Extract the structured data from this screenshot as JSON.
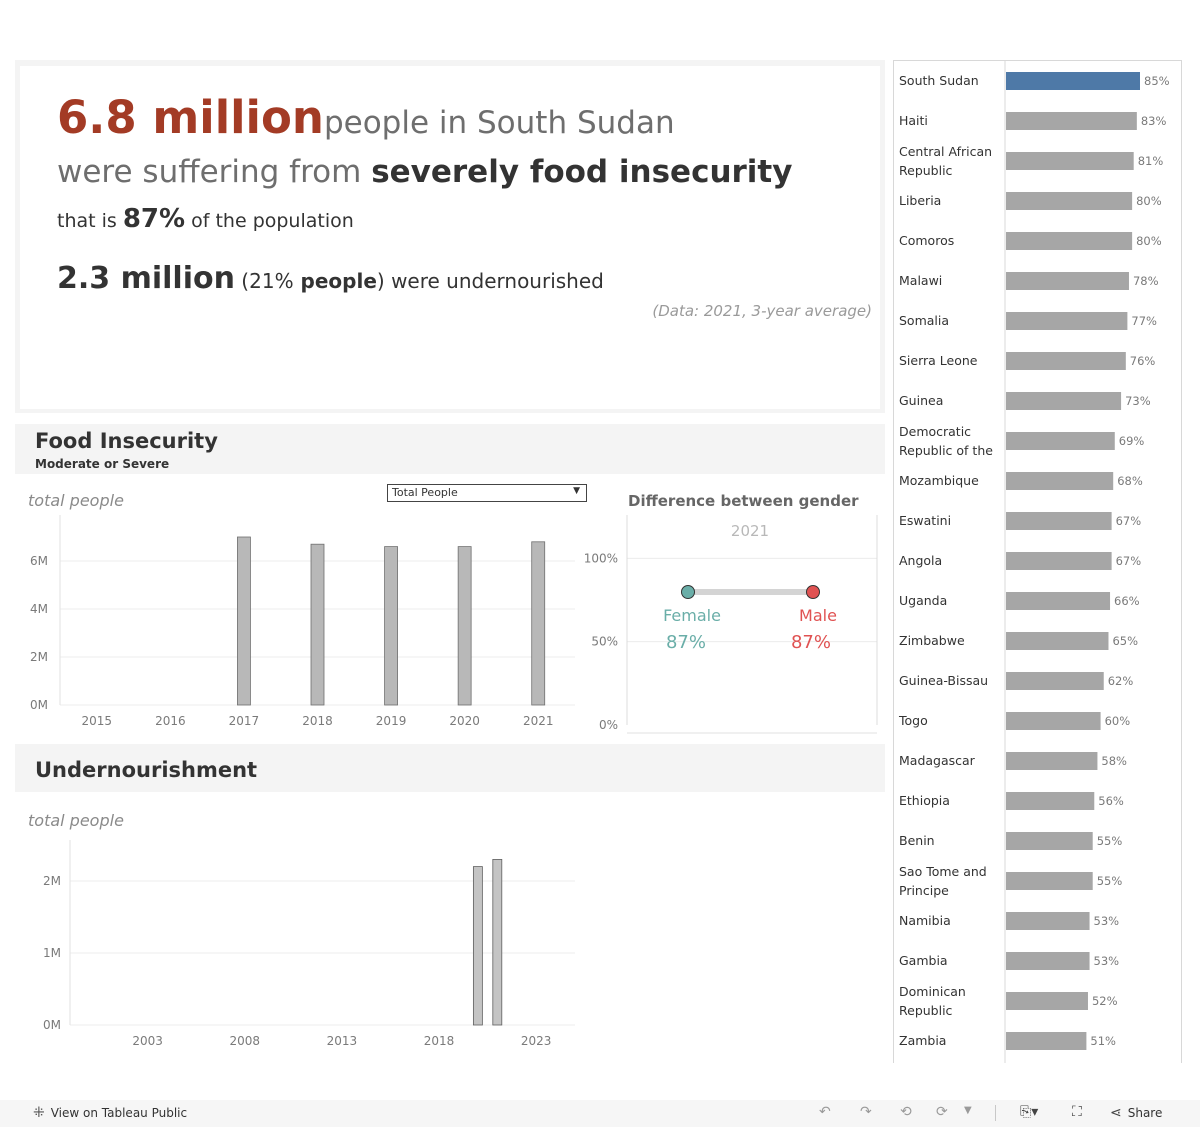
{
  "headline": {
    "amount": "6.8 million",
    "text_people_in": "people in ",
    "country": "South Sudan",
    "text_were_suffering": "were suffering from ",
    "severity": "severely food insecurity",
    "text_that_is": "that is ",
    "percent": "87%",
    "text_of_population": " of the population",
    "under_amount": "2.3 million",
    "under_paren_open": " (",
    "under_pct": "21%",
    "under_people": " people",
    "under_paren_rest": ") were undernourished",
    "note": "(Data: 2021, 3-year average)"
  },
  "food_insecurity": {
    "title": "Food Insecurity",
    "subtitle": "Moderate or Severe",
    "axis_caption": "total people",
    "dropdown_value": "Total People"
  },
  "gender": {
    "title": "Difference between gender",
    "year": "2021",
    "female_label": "Female",
    "male_label": "Male",
    "female_value_label": "87%",
    "male_value_label": "87%",
    "female_color": "#6aaea8",
    "male_color": "#e05252"
  },
  "undernourishment": {
    "title": "Undernourishment",
    "axis_caption": "total people"
  },
  "footer": {
    "view_label": "View on Tableau Public",
    "share_label": "Share"
  },
  "chart_data": [
    {
      "type": "bar",
      "name_ref": "food-insecurity-chart",
      "categories": [
        "2015",
        "2016",
        "2017",
        "2018",
        "2019",
        "2020",
        "2021"
      ],
      "values": [
        null,
        null,
        7.0,
        6.7,
        6.6,
        6.6,
        6.8
      ],
      "unit": "M",
      "ylim": [
        0,
        7.5
      ],
      "yticks": [
        "0M",
        "2M",
        "4M",
        "6M"
      ],
      "ytick_values": [
        0,
        2,
        4,
        6
      ],
      "grid": true,
      "bar_color": "#b8b8b8"
    },
    {
      "type": "scatter",
      "name_ref": "gender-dumbbell-chart",
      "x": [
        "Female",
        "Male"
      ],
      "values": [
        87,
        87
      ],
      "ylim": [
        0,
        120
      ],
      "yticks": [
        "0%",
        "50%",
        "100%"
      ],
      "ytick_values": [
        0,
        50,
        100
      ],
      "grid": true
    },
    {
      "type": "bar",
      "name_ref": "undernourishment-chart",
      "xticks": [
        "2003",
        "2008",
        "2013",
        "2018",
        "2023"
      ],
      "xtick_values": [
        2003,
        2008,
        2013,
        2018,
        2023
      ],
      "xlim": [
        1999,
        2025
      ],
      "x": [
        2020,
        2021
      ],
      "values": [
        2.2,
        2.3
      ],
      "unit": "M",
      "ylim": [
        0,
        2.5
      ],
      "yticks": [
        "0M",
        "1M",
        "2M"
      ],
      "ytick_values": [
        0,
        1,
        2
      ],
      "grid": true,
      "bar_color": "#c4c4c4"
    },
    {
      "type": "bar",
      "orientation": "horizontal",
      "name_ref": "country-ranking-chart",
      "categories": [
        "South Sudan",
        "Haiti",
        "Central African Republic",
        "Liberia",
        "Comoros",
        "Malawi",
        "Somalia",
        "Sierra Leone",
        "Guinea",
        "Democratic Republic of the ..",
        "Mozambique",
        "Eswatini",
        "Angola",
        "Uganda",
        "Zimbabwe",
        "Guinea-Bissau",
        "Togo",
        "Madagascar",
        "Ethiopia",
        "Benin",
        "Sao Tome and Principe",
        "Namibia",
        "Gambia",
        "Dominican Republic",
        "Zambia"
      ],
      "values": [
        85,
        83,
        81,
        80,
        80,
        78,
        77,
        76,
        73,
        69,
        68,
        67,
        67,
        66,
        65,
        62,
        60,
        58,
        56,
        55,
        55,
        53,
        53,
        52,
        51
      ],
      "value_labels": [
        "85%",
        "83%",
        "81%",
        "80%",
        "80%",
        "78%",
        "77%",
        "76%",
        "73%",
        "69%",
        "68%",
        "67%",
        "67%",
        "66%",
        "65%",
        "62%",
        "60%",
        "58%",
        "56%",
        "55%",
        "55%",
        "53%",
        "53%",
        "52%",
        "51%"
      ],
      "xlim": [
        0,
        85
      ],
      "highlight": "South Sudan",
      "highlight_color": "#4e79a7",
      "bar_color": "#a6a6a6"
    }
  ]
}
